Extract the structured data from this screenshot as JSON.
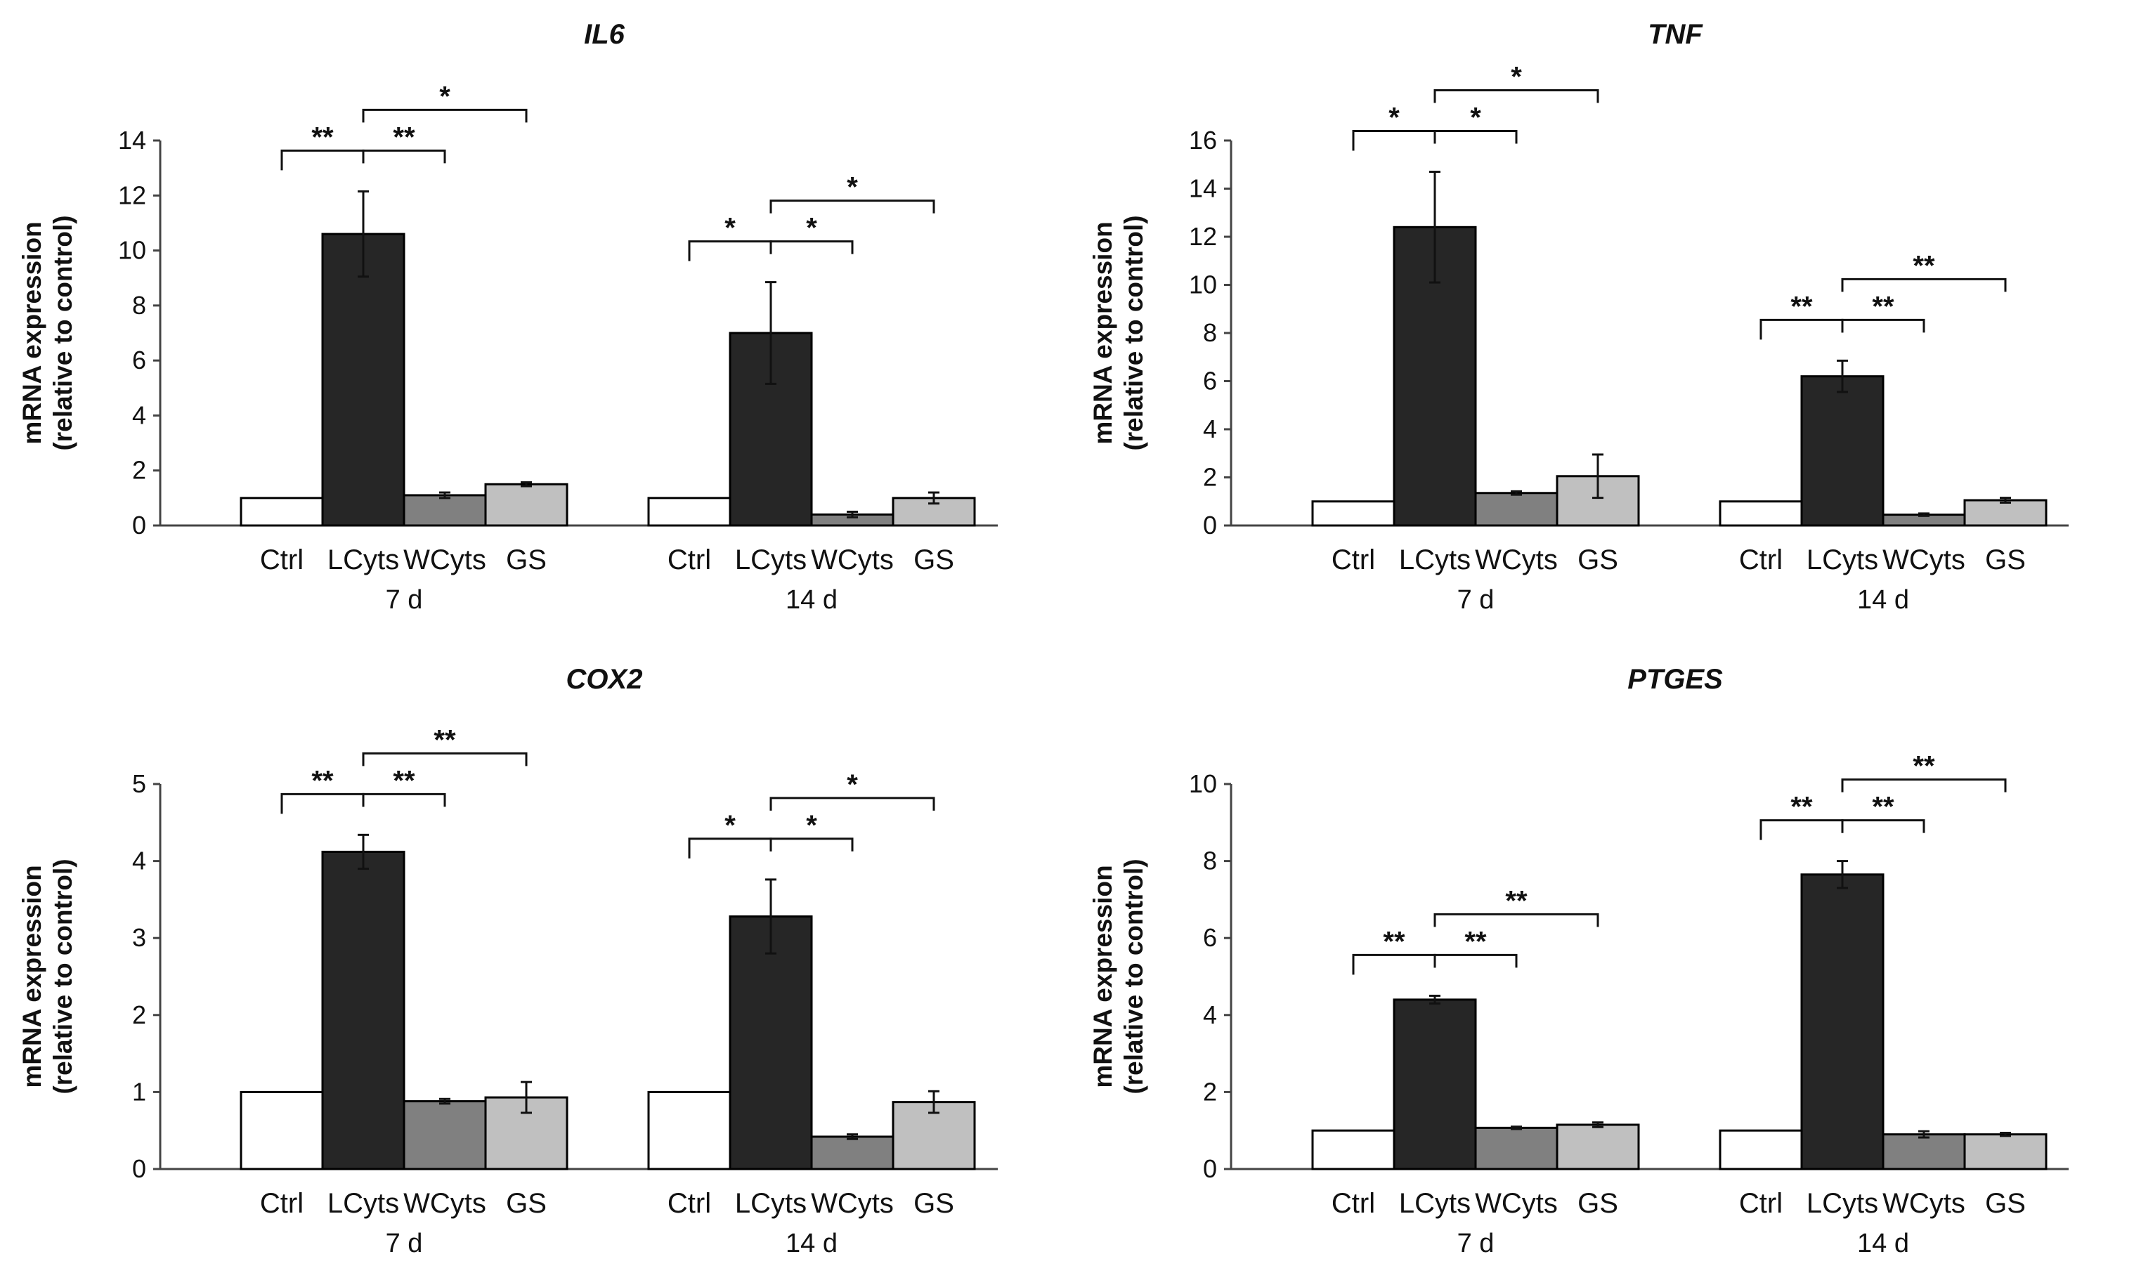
{
  "figure": {
    "legend_note": "",
    "colors": {
      "Ctrl": "#ffffff",
      "LCyts": "#262626",
      "WCyts": "#808080",
      "GS": "#c0c0c0",
      "stroke": "#000000"
    }
  },
  "chart_data": [
    {
      "type": "bar",
      "title": "IL6",
      "ylabel": [
        "mRNA expression",
        "(relative to control)"
      ],
      "xlabel": "",
      "ylim": [
        0,
        14
      ],
      "yticks": [
        0,
        2,
        4,
        6,
        8,
        10,
        12,
        14
      ],
      "categories": [
        "Ctrl",
        "LCyts",
        "WCyts",
        "GS"
      ],
      "groups": [
        "7 d",
        "14 d"
      ],
      "series": [
        {
          "group": "7 d",
          "values": [
            1.0,
            10.6,
            1.1,
            1.5
          ],
          "errors": [
            0.0,
            1.55,
            0.1,
            0.07
          ]
        },
        {
          "group": "14 d",
          "values": [
            1.0,
            7.0,
            0.4,
            1.0
          ],
          "errors": [
            0.0,
            1.85,
            0.1,
            0.2
          ]
        }
      ],
      "significance": [
        {
          "group": "7 d",
          "from": "Ctrl",
          "to": "LCyts",
          "label": "**",
          "level": 0
        },
        {
          "group": "7 d",
          "from": "LCyts",
          "to": "WCyts",
          "label": "**",
          "level": 0
        },
        {
          "group": "7 d",
          "from": "LCyts",
          "to": "GS",
          "label": "*",
          "level": 1
        },
        {
          "group": "14 d",
          "from": "Ctrl",
          "to": "LCyts",
          "label": "*",
          "level": 0
        },
        {
          "group": "14 d",
          "from": "LCyts",
          "to": "WCyts",
          "label": "*",
          "level": 0
        },
        {
          "group": "14 d",
          "from": "LCyts",
          "to": "GS",
          "label": "*",
          "level": 1
        }
      ]
    },
    {
      "type": "bar",
      "title": "TNF",
      "ylabel": [
        "mRNA expression",
        "(relative to control)"
      ],
      "xlabel": "",
      "ylim": [
        0,
        16
      ],
      "yticks": [
        0,
        2,
        4,
        6,
        8,
        10,
        12,
        14,
        16
      ],
      "categories": [
        "Ctrl",
        "LCyts",
        "WCyts",
        "GS"
      ],
      "groups": [
        "7 d",
        "14 d"
      ],
      "series": [
        {
          "group": "7 d",
          "values": [
            1.0,
            12.4,
            1.35,
            2.05
          ],
          "errors": [
            0.0,
            2.3,
            0.07,
            0.9
          ]
        },
        {
          "group": "14 d",
          "values": [
            1.0,
            6.2,
            0.45,
            1.05
          ],
          "errors": [
            0.0,
            0.65,
            0.05,
            0.1
          ]
        }
      ],
      "significance": [
        {
          "group": "7 d",
          "from": "Ctrl",
          "to": "LCyts",
          "label": "*",
          "level": 0
        },
        {
          "group": "7 d",
          "from": "LCyts",
          "to": "WCyts",
          "label": "*",
          "level": 0
        },
        {
          "group": "7 d",
          "from": "LCyts",
          "to": "GS",
          "label": "*",
          "level": 1
        },
        {
          "group": "14 d",
          "from": "Ctrl",
          "to": "LCyts",
          "label": "**",
          "level": 0
        },
        {
          "group": "14 d",
          "from": "LCyts",
          "to": "WCyts",
          "label": "**",
          "level": 0
        },
        {
          "group": "14 d",
          "from": "LCyts",
          "to": "GS",
          "label": "**",
          "level": 1
        }
      ]
    },
    {
      "type": "bar",
      "title": "COX2",
      "ylabel": [
        "mRNA expression",
        "(relative to control)"
      ],
      "xlabel": "",
      "ylim": [
        0,
        5
      ],
      "yticks": [
        0,
        1,
        2,
        3,
        4,
        5
      ],
      "categories": [
        "Ctrl",
        "LCyts",
        "WCyts",
        "GS"
      ],
      "groups": [
        "7 d",
        "14 d"
      ],
      "series": [
        {
          "group": "7 d",
          "values": [
            1.0,
            4.12,
            0.88,
            0.93
          ],
          "errors": [
            0.0,
            0.22,
            0.03,
            0.2
          ]
        },
        {
          "group": "14 d",
          "values": [
            1.0,
            3.28,
            0.42,
            0.87
          ],
          "errors": [
            0.0,
            0.48,
            0.03,
            0.14
          ]
        }
      ],
      "significance": [
        {
          "group": "7 d",
          "from": "Ctrl",
          "to": "LCyts",
          "label": "**",
          "level": 0
        },
        {
          "group": "7 d",
          "from": "LCyts",
          "to": "WCyts",
          "label": "**",
          "level": 0
        },
        {
          "group": "7 d",
          "from": "LCyts",
          "to": "GS",
          "label": "**",
          "level": 1
        },
        {
          "group": "14 d",
          "from": "Ctrl",
          "to": "LCyts",
          "label": "*",
          "level": 0
        },
        {
          "group": "14 d",
          "from": "LCyts",
          "to": "WCyts",
          "label": "*",
          "level": 0
        },
        {
          "group": "14 d",
          "from": "LCyts",
          "to": "GS",
          "label": "*",
          "level": 1
        }
      ]
    },
    {
      "type": "bar",
      "title": "PTGES",
      "ylabel": [
        "mRNA expression",
        "(relative to control)"
      ],
      "xlabel": "",
      "ylim": [
        0,
        10
      ],
      "yticks": [
        0,
        2,
        4,
        6,
        8,
        10
      ],
      "categories": [
        "Ctrl",
        "LCyts",
        "WCyts",
        "GS"
      ],
      "groups": [
        "7 d",
        "14 d"
      ],
      "series": [
        {
          "group": "7 d",
          "values": [
            1.0,
            4.4,
            1.07,
            1.15
          ],
          "errors": [
            0.0,
            0.1,
            0.03,
            0.06
          ]
        },
        {
          "group": "14 d",
          "values": [
            1.0,
            7.65,
            0.9,
            0.9
          ],
          "errors": [
            0.0,
            0.35,
            0.08,
            0.04
          ]
        }
      ],
      "significance": [
        {
          "group": "7 d",
          "from": "Ctrl",
          "to": "LCyts",
          "label": "**",
          "level": 0
        },
        {
          "group": "7 d",
          "from": "LCyts",
          "to": "WCyts",
          "label": "**",
          "level": 0
        },
        {
          "group": "7 d",
          "from": "LCyts",
          "to": "GS",
          "label": "**",
          "level": 1
        },
        {
          "group": "14 d",
          "from": "Ctrl",
          "to": "LCyts",
          "label": "**",
          "level": 0
        },
        {
          "group": "14 d",
          "from": "LCyts",
          "to": "WCyts",
          "label": "**",
          "level": 0
        },
        {
          "group": "14 d",
          "from": "LCyts",
          "to": "GS",
          "label": "**",
          "level": 1
        }
      ]
    }
  ]
}
